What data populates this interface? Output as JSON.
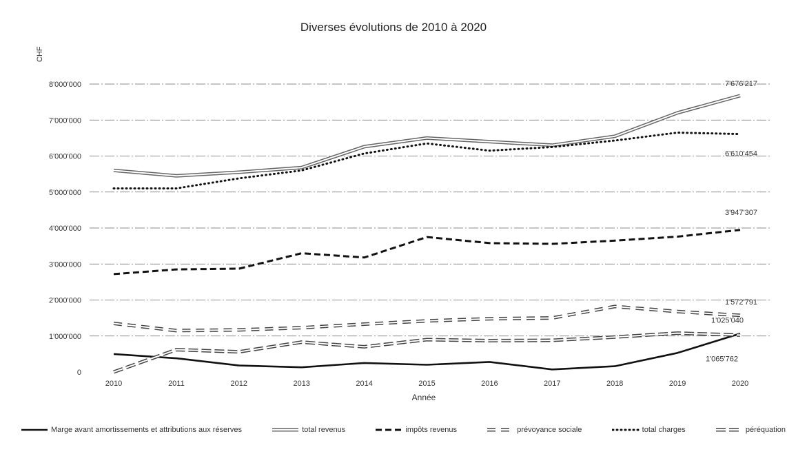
{
  "chart_data": {
    "type": "line",
    "title": "Diverses évolutions de 2010 à 2020",
    "ylabel": "CHF",
    "xlabel": "Année",
    "ylim": [
      0,
      8000000
    ],
    "y_ticks": [
      "0",
      "1'000'000",
      "2'000'000",
      "3'000'000",
      "4'000'000",
      "5'000'000",
      "6'000'000",
      "7'000'000",
      "8'000'000"
    ],
    "categories": [
      "2010",
      "2011",
      "2012",
      "2013",
      "2014",
      "2015",
      "2016",
      "2017",
      "2018",
      "2019",
      "2020"
    ],
    "grid": true,
    "legend_position": "bottom",
    "series": [
      {
        "name": "Marge avant amortissements et attributions aux réserves",
        "style": "solid-thick",
        "color": "#111111",
        "values": [
          500000,
          380000,
          180000,
          130000,
          250000,
          200000,
          280000,
          70000,
          160000,
          530000,
          1065762
        ]
      },
      {
        "name": "total revenus",
        "style": "double",
        "color": "#666666",
        "values": [
          5600000,
          5450000,
          5550000,
          5680000,
          6260000,
          6500000,
          6400000,
          6300000,
          6550000,
          7200000,
          7676217
        ]
      },
      {
        "name": "impôts revenus",
        "style": "dash-thick",
        "color": "#111111",
        "values": [
          2720000,
          2850000,
          2870000,
          3300000,
          3180000,
          3750000,
          3580000,
          3560000,
          3650000,
          3760000,
          3947307
        ]
      },
      {
        "name": "prévoyance sociale",
        "style": "dash-hollow",
        "color": "#444444",
        "values": [
          1350000,
          1150000,
          1170000,
          1230000,
          1330000,
          1420000,
          1480000,
          1500000,
          1820000,
          1680000,
          1572791
        ]
      },
      {
        "name": "total charges",
        "style": "dotted",
        "color": "#111111",
        "values": [
          5100000,
          5100000,
          5380000,
          5600000,
          6070000,
          6350000,
          6150000,
          6250000,
          6430000,
          6650000,
          6610454
        ]
      },
      {
        "name": "péréquation",
        "style": "dash-hollow-long",
        "color": "#444444",
        "values": [
          0,
          620000,
          560000,
          830000,
          700000,
          900000,
          870000,
          880000,
          970000,
          1080000,
          1025040
        ]
      }
    ],
    "end_labels": [
      {
        "series": 1,
        "text": "7'676'217"
      },
      {
        "series": 4,
        "text": "6'610'454"
      },
      {
        "series": 2,
        "text": "3'947'307"
      },
      {
        "series": 3,
        "text": "1'572'791"
      },
      {
        "series": 5,
        "text": "1'025'040"
      },
      {
        "series": 0,
        "text": "1'065'762"
      }
    ]
  }
}
